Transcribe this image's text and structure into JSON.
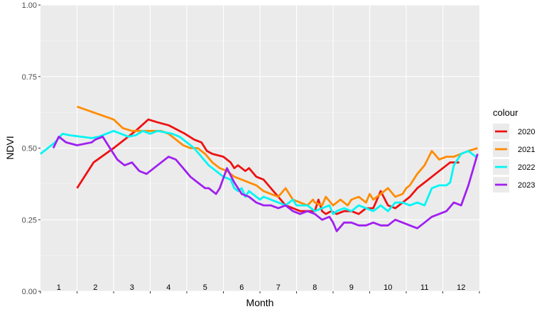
{
  "chart_data": {
    "type": "line",
    "xlabel": "Month",
    "ylabel": "NDVI",
    "ylim": [
      0,
      1
    ],
    "xlim": [
      0.5,
      12.5
    ],
    "y_ticks": [
      "0.00",
      "0.25",
      "0.50",
      "0.75",
      "1.00"
    ],
    "month_labels": [
      "1",
      "2",
      "3",
      "4",
      "5",
      "6",
      "7",
      "8",
      "9",
      "10",
      "11",
      "12"
    ],
    "grid": true,
    "legend_title": "colour",
    "legend_position": "right",
    "series": [
      {
        "name": "2020",
        "color": "#ee1111",
        "x": [
          1.5,
          1.95,
          2.5,
          3.1,
          3.45,
          3.7,
          4.0,
          4.3,
          4.45,
          4.7,
          4.9,
          5.05,
          5.2,
          5.5,
          5.7,
          5.8,
          5.9,
          6.1,
          6.2,
          6.4,
          6.6,
          6.8,
          7.0,
          7.2,
          7.4,
          7.6,
          7.8,
          8.0,
          8.1,
          8.2,
          8.3,
          8.45,
          8.6,
          8.8,
          9.0,
          9.2,
          9.4,
          9.6,
          9.7,
          9.8,
          10.0,
          10.2,
          10.4,
          10.6,
          10.8,
          11.0,
          11.4,
          11.7,
          11.95
        ],
        "y": [
          0.36,
          0.45,
          0.5,
          0.56,
          0.6,
          0.59,
          0.58,
          0.56,
          0.55,
          0.53,
          0.52,
          0.49,
          0.48,
          0.47,
          0.45,
          0.43,
          0.44,
          0.42,
          0.43,
          0.4,
          0.39,
          0.36,
          0.33,
          0.3,
          0.29,
          0.28,
          0.28,
          0.28,
          0.32,
          0.28,
          0.27,
          0.28,
          0.27,
          0.28,
          0.28,
          0.27,
          0.29,
          0.29,
          0.32,
          0.35,
          0.3,
          0.29,
          0.31,
          0.33,
          0.36,
          0.38,
          0.42,
          0.45,
          0.45
        ]
      },
      {
        "name": "2021",
        "color": "#ff8c00",
        "x": [
          1.5,
          2.5,
          2.75,
          3.0,
          3.5,
          3.8,
          4.0,
          4.2,
          4.4,
          4.6,
          4.8,
          5.0,
          5.2,
          5.4,
          5.6,
          5.8,
          6.0,
          6.2,
          6.4,
          6.6,
          6.8,
          7.0,
          7.2,
          7.4,
          7.6,
          7.8,
          7.95,
          8.0,
          8.2,
          8.3,
          8.5,
          8.7,
          8.9,
          9.0,
          9.2,
          9.4,
          9.5,
          9.6,
          9.8,
          10.0,
          10.2,
          10.4,
          10.5,
          10.6,
          10.8,
          11.0,
          11.2,
          11.4,
          11.6,
          11.8,
          12.0,
          12.2,
          12.45
        ],
        "y": [
          0.645,
          0.6,
          0.57,
          0.56,
          0.56,
          0.56,
          0.55,
          0.53,
          0.51,
          0.5,
          0.5,
          0.48,
          0.45,
          0.43,
          0.42,
          0.4,
          0.39,
          0.38,
          0.37,
          0.35,
          0.34,
          0.33,
          0.36,
          0.32,
          0.31,
          0.3,
          0.32,
          0.31,
          0.3,
          0.33,
          0.3,
          0.32,
          0.3,
          0.32,
          0.33,
          0.31,
          0.34,
          0.32,
          0.34,
          0.36,
          0.33,
          0.34,
          0.36,
          0.37,
          0.41,
          0.44,
          0.49,
          0.46,
          0.47,
          0.47,
          0.48,
          0.49,
          0.5
        ]
      },
      {
        "name": "2022",
        "color": "#00f5f5",
        "x": [
          0.5,
          0.7,
          0.9,
          1.1,
          1.3,
          1.6,
          1.9,
          2.1,
          2.3,
          2.5,
          2.7,
          2.9,
          3.1,
          3.3,
          3.5,
          3.7,
          3.9,
          4.1,
          4.3,
          4.5,
          4.7,
          4.9,
          5.1,
          5.3,
          5.5,
          5.7,
          5.8,
          5.9,
          6.0,
          6.1,
          6.2,
          6.3,
          6.4,
          6.5,
          6.6,
          6.8,
          7.0,
          7.2,
          7.4,
          7.5,
          7.6,
          7.8,
          8.0,
          8.2,
          8.4,
          8.5,
          8.6,
          8.8,
          9.0,
          9.2,
          9.4,
          9.6,
          9.8,
          10.0,
          10.2,
          10.4,
          10.6,
          10.8,
          11.0,
          11.2,
          11.4,
          11.6,
          11.7,
          11.8,
          12.0,
          12.2,
          12.4
        ],
        "y": [
          0.48,
          0.5,
          0.52,
          0.55,
          0.545,
          0.54,
          0.535,
          0.54,
          0.55,
          0.56,
          0.55,
          0.54,
          0.545,
          0.56,
          0.55,
          0.56,
          0.555,
          0.55,
          0.54,
          0.52,
          0.5,
          0.47,
          0.44,
          0.42,
          0.4,
          0.39,
          0.36,
          0.35,
          0.36,
          0.33,
          0.35,
          0.34,
          0.33,
          0.32,
          0.33,
          0.32,
          0.31,
          0.3,
          0.32,
          0.3,
          0.3,
          0.3,
          0.28,
          0.29,
          0.3,
          0.27,
          0.28,
          0.29,
          0.28,
          0.3,
          0.29,
          0.28,
          0.3,
          0.28,
          0.31,
          0.31,
          0.3,
          0.31,
          0.3,
          0.36,
          0.37,
          0.37,
          0.38,
          0.44,
          0.48,
          0.49,
          0.47
        ]
      },
      {
        "name": "2023",
        "color": "#a020f0",
        "x": [
          0.85,
          1.0,
          1.2,
          1.5,
          1.9,
          2.0,
          2.1,
          2.2,
          2.4,
          2.6,
          2.8,
          3.0,
          3.2,
          3.4,
          3.6,
          3.8,
          4.0,
          4.2,
          4.4,
          4.6,
          4.8,
          4.9,
          5.0,
          5.1,
          5.2,
          5.3,
          5.4,
          5.6,
          5.8,
          6.0,
          6.2,
          6.4,
          6.6,
          6.8,
          7.0,
          7.2,
          7.4,
          7.6,
          7.8,
          8.0,
          8.2,
          8.4,
          8.5,
          8.6,
          8.8,
          9.0,
          9.2,
          9.4,
          9.6,
          9.8,
          10.0,
          10.2,
          10.4,
          10.6,
          10.8,
          11.0,
          11.2,
          11.4,
          11.6,
          11.8,
          12.0,
          12.2,
          12.45
        ],
        "y": [
          0.5,
          0.54,
          0.52,
          0.51,
          0.52,
          0.53,
          0.535,
          0.54,
          0.5,
          0.46,
          0.44,
          0.45,
          0.42,
          0.41,
          0.43,
          0.45,
          0.47,
          0.46,
          0.43,
          0.4,
          0.38,
          0.37,
          0.36,
          0.36,
          0.35,
          0.34,
          0.36,
          0.43,
          0.38,
          0.34,
          0.33,
          0.31,
          0.3,
          0.3,
          0.29,
          0.3,
          0.28,
          0.27,
          0.28,
          0.27,
          0.25,
          0.26,
          0.24,
          0.21,
          0.24,
          0.24,
          0.23,
          0.23,
          0.24,
          0.23,
          0.23,
          0.25,
          0.24,
          0.23,
          0.22,
          0.24,
          0.26,
          0.27,
          0.28,
          0.31,
          0.3,
          0.37,
          0.48
        ]
      }
    ]
  }
}
